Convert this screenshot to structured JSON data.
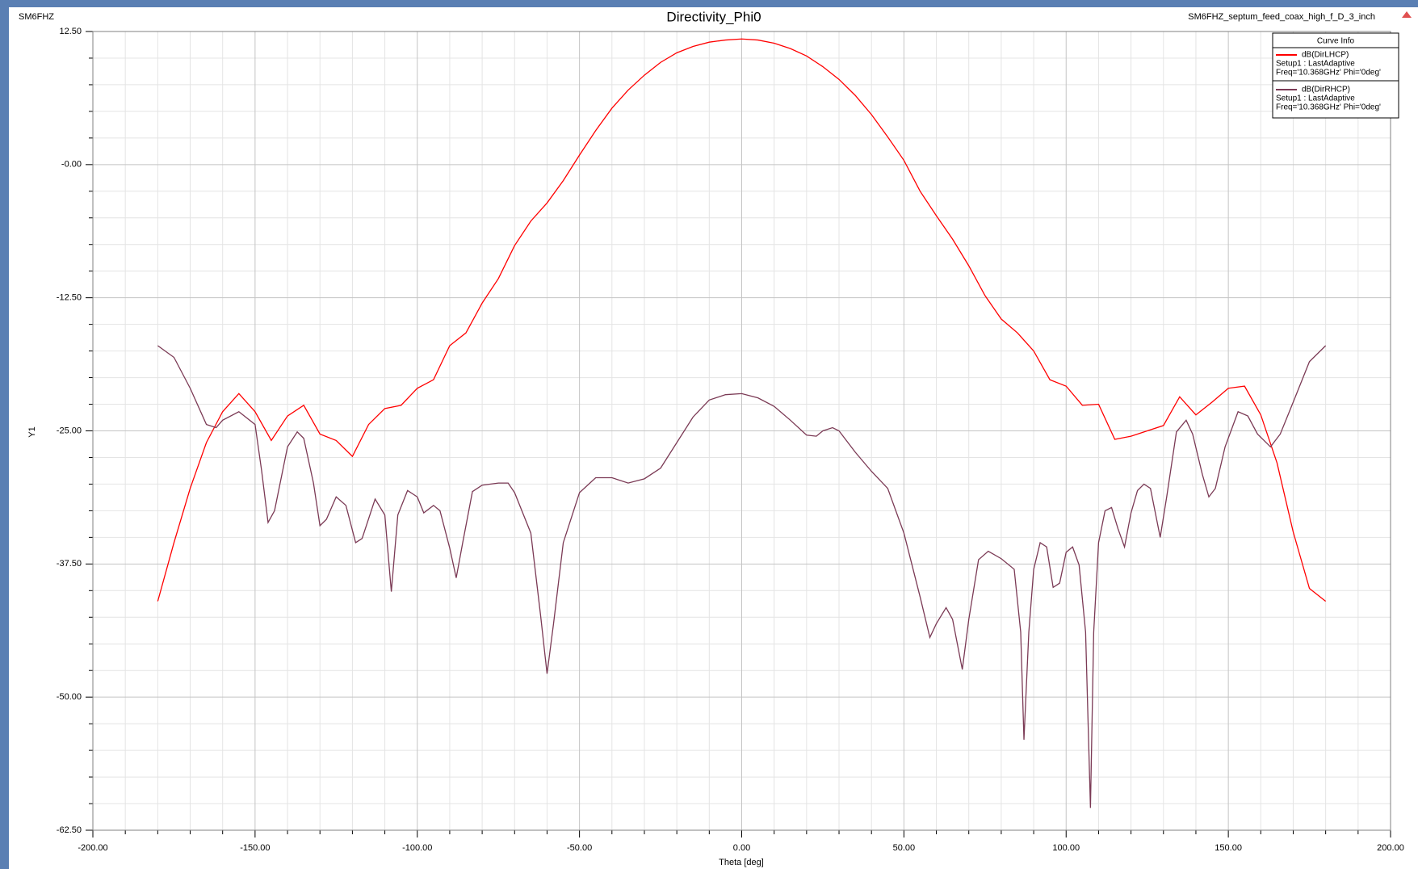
{
  "chart_data": {
    "type": "line",
    "title": "Directivity_Phi0",
    "left_label": "SM6FHZ",
    "right_label": "SM6FHZ_septum_feed_coax_high_f_D_3_inch",
    "x_label": "Theta [deg]",
    "y_label": "Y1",
    "legend_title": "Curve Info",
    "xlim": [
      -200,
      200
    ],
    "ylim": [
      -62.5,
      12.5
    ],
    "xticks": [
      {
        "value": -200,
        "label": "-200.00"
      },
      {
        "value": -150,
        "label": "-150.00"
      },
      {
        "value": -100,
        "label": "-100.00"
      },
      {
        "value": -50,
        "label": "-50.00"
      },
      {
        "value": 0,
        "label": "0.00"
      },
      {
        "value": 50,
        "label": "50.00"
      },
      {
        "value": 100,
        "label": "100.00"
      },
      {
        "value": 150,
        "label": "150.00"
      },
      {
        "value": 200,
        "label": "200.00"
      }
    ],
    "yticks": [
      {
        "value": -62.5,
        "label": "-62.50"
      },
      {
        "value": -50,
        "label": "-50.00"
      },
      {
        "value": -37.5,
        "label": "-37.50"
      },
      {
        "value": -25,
        "label": "-25.00"
      },
      {
        "value": -12.5,
        "label": "-12.50"
      },
      {
        "value": 0,
        "label": "-0.00"
      },
      {
        "value": 12.5,
        "label": "12.50"
      }
    ],
    "grid": true,
    "series": [
      {
        "name": "dB(DirLHCP)",
        "setup": "Setup1 : LastAdaptive",
        "params": "Freq='10.368GHz' Phi='0deg'",
        "color": "#ff0000",
        "x": [
          -180,
          -175,
          -170,
          -165,
          -160,
          -155,
          -150,
          -145,
          -140,
          -135,
          -130,
          -125,
          -120,
          -115,
          -110,
          -105,
          -100,
          -95,
          -90,
          -85,
          -80,
          -75,
          -70,
          -65,
          -60,
          -55,
          -50,
          -45,
          -40,
          -35,
          -30,
          -25,
          -20,
          -15,
          -10,
          -5,
          0,
          5,
          10,
          15,
          20,
          25,
          30,
          35,
          40,
          45,
          50,
          55,
          60,
          65,
          70,
          75,
          80,
          85,
          90,
          95,
          100,
          105,
          110,
          115,
          120,
          125,
          130,
          135,
          140,
          145,
          150,
          155,
          160,
          165,
          170,
          175,
          180
        ],
        "values": [
          -41.0,
          -35.5,
          -30.4,
          -26.1,
          -23.2,
          -21.5,
          -23.2,
          -25.9,
          -23.6,
          -22.6,
          -25.3,
          -25.9,
          -27.4,
          -24.4,
          -22.9,
          -22.6,
          -21.0,
          -20.2,
          -17.0,
          -15.8,
          -13.0,
          -10.7,
          -7.6,
          -5.3,
          -3.6,
          -1.5,
          0.9,
          3.2,
          5.3,
          7.0,
          8.4,
          9.6,
          10.5,
          11.1,
          11.5,
          11.7,
          11.8,
          11.7,
          11.4,
          10.9,
          10.2,
          9.2,
          8.0,
          6.5,
          4.7,
          2.6,
          0.4,
          -2.5,
          -4.8,
          -7.0,
          -9.5,
          -12.3,
          -14.5,
          -15.8,
          -17.5,
          -20.2,
          -20.8,
          -22.6,
          -22.5,
          -25.8,
          -25.5,
          -25.0,
          -24.5,
          -21.8,
          -23.5,
          -22.3,
          -21.0,
          -20.8,
          -23.5,
          -28.0,
          -34.5,
          -39.8,
          -41.0
        ]
      },
      {
        "name": "dB(DirRHCP)",
        "setup": "Setup1 : LastAdaptive",
        "params": "Freq='10.368GHz' Phi='0deg'",
        "color": "#7b3a55",
        "x": [
          -180,
          -175,
          -170,
          -165,
          -162,
          -160,
          -155,
          -150,
          -148,
          -146,
          -144,
          -140,
          -137,
          -135,
          -132,
          -130,
          -128,
          -125,
          -122,
          -119,
          -117,
          -113,
          -110,
          -108,
          -106,
          -103,
          -100,
          -98,
          -95,
          -93,
          -90,
          -88,
          -86,
          -83,
          -80,
          -75,
          -72,
          -70,
          -65,
          -62,
          -60,
          -58,
          -55,
          -50,
          -45,
          -40,
          -35,
          -30,
          -25,
          -20,
          -15,
          -10,
          -5,
          0,
          5,
          10,
          15,
          20,
          23,
          25,
          28,
          30,
          35,
          40,
          45,
          50,
          55,
          58,
          60,
          63,
          65,
          68,
          70,
          73,
          76,
          80,
          84,
          86,
          87,
          88.5,
          90,
          92,
          94,
          96,
          98,
          100,
          102,
          104,
          106,
          107.5,
          108.5,
          110,
          112,
          114,
          116,
          118,
          120,
          122,
          124,
          126,
          129,
          131,
          134,
          137,
          139,
          142,
          144,
          146,
          149,
          153,
          156,
          159,
          163,
          166,
          170,
          175,
          180
        ],
        "values": [
          -17.0,
          -18.1,
          -21.0,
          -24.4,
          -24.7,
          -24.0,
          -23.2,
          -24.4,
          -28.7,
          -33.6,
          -32.5,
          -26.5,
          -25.1,
          -25.7,
          -29.9,
          -33.9,
          -33.3,
          -31.2,
          -32.0,
          -35.5,
          -35.1,
          -31.4,
          -32.9,
          -40.1,
          -32.9,
          -30.6,
          -31.2,
          -32.7,
          -32.0,
          -32.5,
          -36.0,
          -38.8,
          -35.5,
          -30.7,
          -30.1,
          -29.9,
          -29.9,
          -30.8,
          -34.6,
          -42.3,
          -47.8,
          -43.1,
          -35.5,
          -30.8,
          -29.4,
          -29.4,
          -29.9,
          -29.5,
          -28.5,
          -26.1,
          -23.7,
          -22.1,
          -21.6,
          -21.5,
          -21.9,
          -22.7,
          -24.0,
          -25.4,
          -25.5,
          -25.0,
          -24.7,
          -25.0,
          -27.0,
          -28.8,
          -30.4,
          -34.6,
          -40.6,
          -44.4,
          -43.1,
          -41.6,
          -42.7,
          -47.4,
          -42.7,
          -37.1,
          -36.3,
          -37.0,
          -38.0,
          -43.9,
          -54.0,
          -43.9,
          -38.0,
          -35.5,
          -35.9,
          -39.7,
          -39.3,
          -36.4,
          -35.9,
          -37.6,
          -43.9,
          -60.4,
          -43.9,
          -35.5,
          -32.5,
          -32.2,
          -34.2,
          -35.9,
          -32.7,
          -30.6,
          -30.0,
          -30.4,
          -35.0,
          -31.2,
          -25.1,
          -24.0,
          -25.3,
          -29.1,
          -31.2,
          -30.4,
          -26.5,
          -23.2,
          -23.6,
          -25.3,
          -26.5,
          -25.3,
          -22.3,
          -18.5,
          -17.0
        ]
      }
    ]
  }
}
